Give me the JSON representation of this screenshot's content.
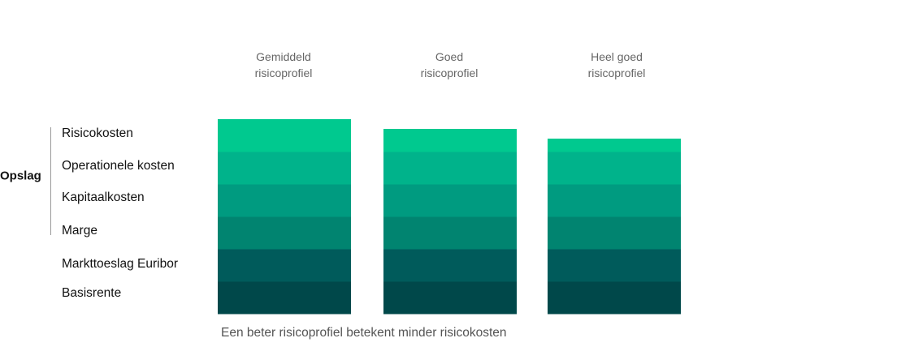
{
  "chart_data": {
    "type": "bar",
    "stacked": true,
    "categories": [
      [
        "Gemiddeld",
        "risicoprofiel"
      ],
      [
        "Goed",
        "risicoprofiel"
      ],
      [
        "Heel goed",
        "risicoprofiel"
      ]
    ],
    "series": [
      {
        "name": "Basisrente",
        "values": [
          1.0,
          1.0,
          1.0
        ],
        "color": "#00484a"
      },
      {
        "name": "Markttoeslag Euribor",
        "values": [
          1.0,
          1.0,
          1.0
        ],
        "color": "#005b5b"
      },
      {
        "name": "Marge",
        "values": [
          1.0,
          1.0,
          1.0
        ],
        "color": "#018470"
      },
      {
        "name": "Kapitaalkosten",
        "values": [
          1.0,
          1.0,
          1.0
        ],
        "color": "#009b80"
      },
      {
        "name": "Operationele kosten",
        "values": [
          1.0,
          1.0,
          1.0
        ],
        "color": "#00b38b"
      },
      {
        "name": "Risicokosten",
        "values": [
          1.0,
          0.7,
          0.4
        ],
        "color": "#00c98f"
      }
    ],
    "group_label": "Opslag",
    "group_members": [
      "Risicokosten",
      "Operationele kosten",
      "Kapitaalkosten",
      "Marge"
    ],
    "caption": "Een beter risicoprofiel betekent minder risicokosten",
    "ylim": [
      0,
      6
    ]
  }
}
